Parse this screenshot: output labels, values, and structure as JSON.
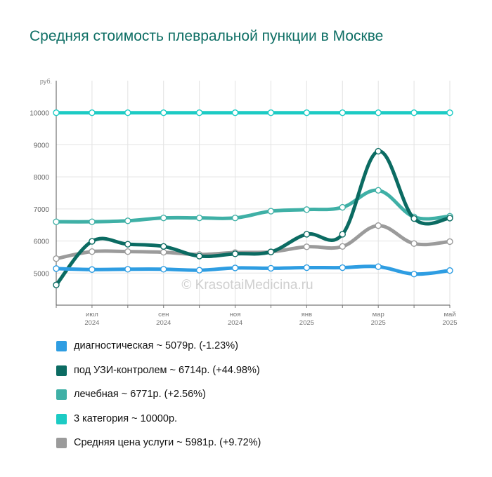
{
  "title": "Средняя стоимость плевральной пункции в Москве",
  "watermark": "© KrasotaiMedicina.ru",
  "chart_data": {
    "type": "line",
    "title": "Средняя стоимость плевральной пункции в Москве",
    "ylabel": "руб.",
    "ylim": [
      4000,
      11000
    ],
    "yticks": [
      5000,
      6000,
      7000,
      8000,
      9000,
      10000
    ],
    "grid": true,
    "legend_position": "bottom",
    "x": [
      "2024-06",
      "2024-07",
      "2024-08",
      "2024-09",
      "2024-10",
      "2024-11",
      "2024-12",
      "2025-01",
      "2025-02",
      "2025-03",
      "2025-04",
      "2025-05"
    ],
    "xtick_labels": [
      {
        "index": 1,
        "month": "июл",
        "year": "2024"
      },
      {
        "index": 3,
        "month": "сен",
        "year": "2024"
      },
      {
        "index": 5,
        "month": "ноя",
        "year": "2024"
      },
      {
        "index": 7,
        "month": "янв",
        "year": "2025"
      },
      {
        "index": 9,
        "month": "мар",
        "year": "2025"
      },
      {
        "index": 11,
        "month": "май",
        "year": "2025"
      }
    ],
    "series": [
      {
        "name": "3 категория",
        "color": "#1ccbc4",
        "values": [
          10000,
          10000,
          10000,
          10000,
          10000,
          10000,
          10000,
          10000,
          10000,
          10000,
          10000,
          10000
        ],
        "legend": "3 категория ~ 10000р."
      },
      {
        "name": "лечебная",
        "color": "#3fb0a6",
        "values": [
          6600,
          6600,
          6630,
          6720,
          6720,
          6720,
          6930,
          6980,
          7050,
          7580,
          6750,
          6771
        ],
        "legend": "лечебная ~ 6771р. (+2.56%)"
      },
      {
        "name": "Средняя цена услуги",
        "color": "#9b9b9b",
        "values": [
          5450,
          5670,
          5670,
          5650,
          5580,
          5640,
          5660,
          5820,
          5830,
          6480,
          5920,
          5981
        ],
        "legend": "Средняя цена услуги ~ 5981р. (+9.72%)"
      },
      {
        "name": "под УЗИ-контролем",
        "color": "#0b6b62",
        "values": [
          4630,
          5990,
          5900,
          5830,
          5530,
          5600,
          5660,
          6210,
          6210,
          8800,
          6700,
          6714
        ],
        "legend": "под УЗИ-контролем ~ 6714р. (+44.98%)"
      },
      {
        "name": "диагностическая",
        "color": "#2e9de2",
        "values": [
          5140,
          5110,
          5120,
          5120,
          5090,
          5160,
          5150,
          5170,
          5170,
          5200,
          4970,
          5079
        ],
        "legend": "диагностическая ~ 5079р. (-1.23%)"
      }
    ],
    "legend_order": [
      "диагностическая",
      "под УЗИ-контролем",
      "лечебная",
      "3 категория",
      "Средняя цена услуги"
    ]
  }
}
